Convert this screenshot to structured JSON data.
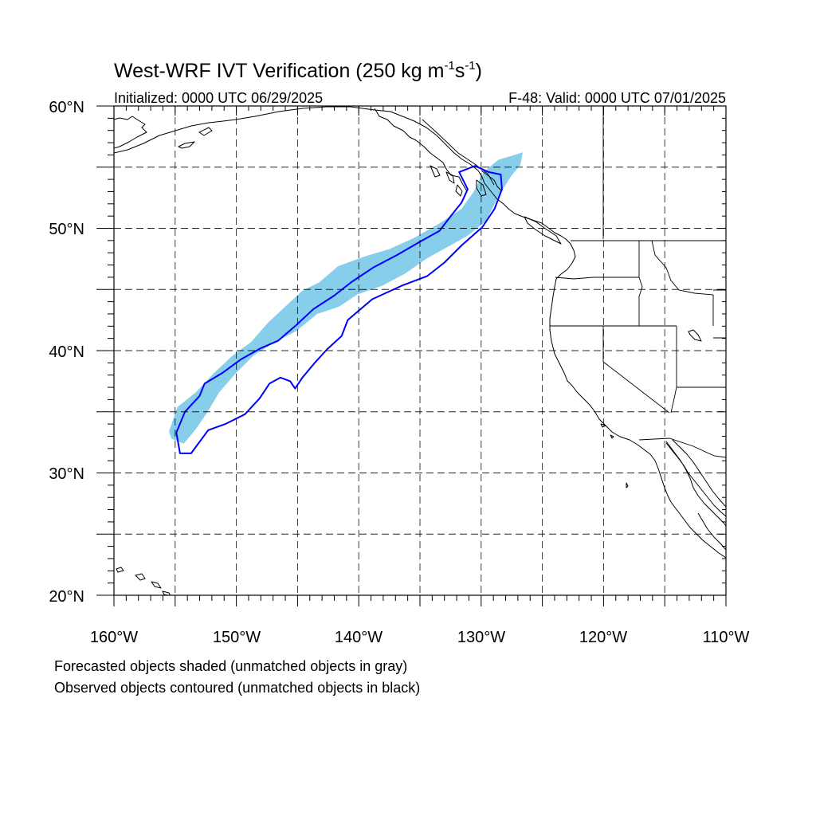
{
  "title": {
    "main": "West-WRF IVT Verification (250 kg m",
    "exp1": "-1",
    "mid": "s",
    "exp2": "-1",
    "close": ")"
  },
  "init_text": "Initialized: 0000 UTC 06/29/2025",
  "valid_text": "F-48: Valid: 0000 UTC 07/01/2025",
  "axes": {
    "lon_labels": [
      "160°W",
      "150°W",
      "140°W",
      "130°W",
      "120°W",
      "110°W"
    ],
    "lat_labels": [
      "20°N",
      "30°N",
      "40°N",
      "50°N",
      "60°N"
    ],
    "lon_range": [
      -160,
      -110
    ],
    "lat_range": [
      20,
      60
    ],
    "grid": true,
    "grid_spacing_deg": 5
  },
  "legend_notes": [
    "Forecasted objects shaded (unmatched objects in gray)",
    "Observed objects contoured (unmatched objects in black)"
  ],
  "colors": {
    "forecast_fill": "#87ceeb",
    "observed_contour": "#0000ff",
    "coastline": "#000000"
  },
  "objects": {
    "forecast_matched": {
      "color": "skyblue",
      "outline_lonlat": [
        [
          -155.5,
          33.4
        ],
        [
          -154.8,
          35.4
        ],
        [
          -153.3,
          36.6
        ],
        [
          -151.8,
          38.2
        ],
        [
          -150.3,
          39.6
        ],
        [
          -148.8,
          40.7
        ],
        [
          -147.4,
          42.3
        ],
        [
          -146.0,
          43.6
        ],
        [
          -144.6,
          44.9
        ],
        [
          -143.2,
          45.6
        ],
        [
          -141.7,
          46.9
        ],
        [
          -139.5,
          47.7
        ],
        [
          -137.5,
          48.3
        ],
        [
          -135.5,
          49.2
        ],
        [
          -133.4,
          50.4
        ],
        [
          -131.6,
          51.6
        ],
        [
          -130.6,
          53.0
        ],
        [
          -129.8,
          54.6
        ],
        [
          -128.6,
          55.6
        ],
        [
          -126.6,
          56.2
        ],
        [
          -126.8,
          55.2
        ],
        [
          -127.6,
          54.2
        ],
        [
          -128.6,
          52.6
        ],
        [
          -129.6,
          50.6
        ],
        [
          -131.1,
          49.4
        ],
        [
          -132.7,
          48.5
        ],
        [
          -134.5,
          47.5
        ],
        [
          -136.2,
          46.3
        ],
        [
          -138.1,
          45.3
        ],
        [
          -140.1,
          44.6
        ],
        [
          -141.6,
          43.6
        ],
        [
          -143.4,
          43.0
        ],
        [
          -145.1,
          41.6
        ],
        [
          -147.0,
          40.6
        ],
        [
          -148.6,
          39.6
        ],
        [
          -150.1,
          38.1
        ],
        [
          -151.4,
          36.6
        ],
        [
          -152.4,
          34.9
        ],
        [
          -153.3,
          33.6
        ],
        [
          -154.3,
          32.4
        ],
        [
          -155.3,
          32.8
        ]
      ]
    },
    "observed_matched": {
      "color": "blue",
      "outline_lonlat": [
        [
          -154.6,
          31.6
        ],
        [
          -154.9,
          33.3
        ],
        [
          -154.2,
          35.0
        ],
        [
          -153.0,
          36.3
        ],
        [
          -152.6,
          37.3
        ],
        [
          -151.1,
          38.2
        ],
        [
          -149.6,
          39.3
        ],
        [
          -148.0,
          40.2
        ],
        [
          -146.6,
          40.8
        ],
        [
          -145.2,
          42.0
        ],
        [
          -143.7,
          43.4
        ],
        [
          -142.0,
          44.5
        ],
        [
          -140.6,
          45.6
        ],
        [
          -138.8,
          46.8
        ],
        [
          -136.9,
          47.8
        ],
        [
          -135.0,
          48.9
        ],
        [
          -133.4,
          49.8
        ],
        [
          -132.4,
          51.1
        ],
        [
          -131.6,
          52.1
        ],
        [
          -131.1,
          53.2
        ],
        [
          -131.8,
          54.6
        ],
        [
          -130.5,
          55.1
        ],
        [
          -129.4,
          54.6
        ],
        [
          -128.4,
          54.4
        ],
        [
          -128.3,
          53.2
        ],
        [
          -128.9,
          51.6
        ],
        [
          -129.9,
          50.1
        ],
        [
          -131.6,
          48.6
        ],
        [
          -133.0,
          47.2
        ],
        [
          -134.4,
          46.1
        ],
        [
          -136.5,
          45.3
        ],
        [
          -138.9,
          44.2
        ],
        [
          -140.9,
          42.5
        ],
        [
          -141.4,
          41.2
        ],
        [
          -142.6,
          40.1
        ],
        [
          -143.6,
          39.0
        ],
        [
          -144.6,
          37.8
        ],
        [
          -145.2,
          36.9
        ],
        [
          -145.6,
          37.5
        ],
        [
          -146.4,
          37.8
        ],
        [
          -147.3,
          37.3
        ],
        [
          -148.1,
          36.1
        ],
        [
          -149.3,
          34.8
        ],
        [
          -150.9,
          34.0
        ],
        [
          -152.3,
          33.5
        ],
        [
          -153.7,
          31.6
        ]
      ]
    }
  }
}
